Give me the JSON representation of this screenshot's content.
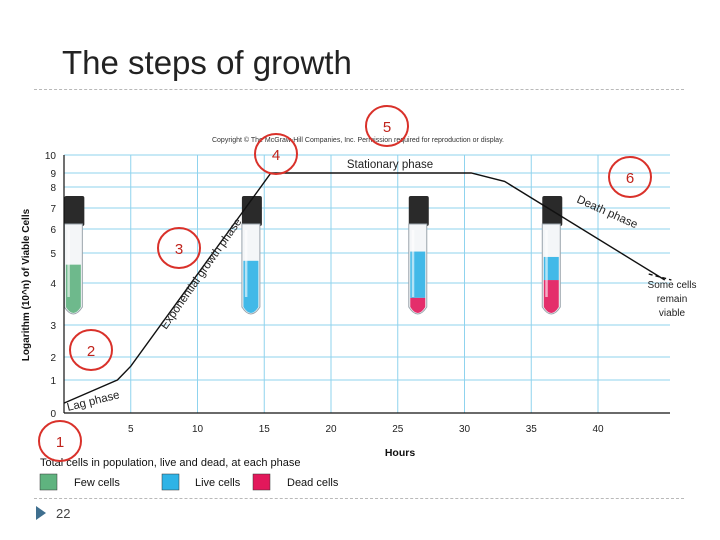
{
  "slide": {
    "title": "The steps of growth",
    "slide_number": "22"
  },
  "copyright": "Copyright © The McGraw-Hill Companies, Inc. Permission required for reproduction or display.",
  "colors": {
    "grid": "#8fd3ee",
    "curve": "#111111",
    "marker_ring": "#d9312a",
    "marker_text": "#c0241c",
    "few_cells": "#5fb37f",
    "live_cells": "#2fb3e6",
    "dead_cells": "#e2185b",
    "tube_cap": "#2a2a2a"
  },
  "annotations": {
    "lag_phase": "Lag phase",
    "exponential_phase": "Exponential growth phase",
    "stationary_phase": "Stationary phase",
    "death_phase": "Death phase",
    "remain_viable": [
      "Some cells",
      "remain",
      "viable"
    ]
  },
  "markers": [
    "1",
    "2",
    "3",
    "4",
    "5",
    "6"
  ],
  "legend": {
    "title": "Total cells in population, live and dead, at each phase",
    "items": [
      {
        "label": "Few cells",
        "color": "#5fb37f"
      },
      {
        "label": "Live cells",
        "color": "#2fb3e6"
      },
      {
        "label": "Dead cells",
        "color": "#e2185b"
      }
    ]
  },
  "tubes": [
    {
      "hours": 0.7,
      "green": 0.55,
      "blue": 0,
      "pink": 0
    },
    {
      "hours": 14,
      "green": 0,
      "blue": 0.6,
      "pink": 0
    },
    {
      "hours": 26.5,
      "green": 0,
      "blue": 0.6,
      "pink": 0.12
    },
    {
      "hours": 36.5,
      "green": 0,
      "blue": 0.3,
      "pink": 0.35
    }
  ],
  "chart_data": {
    "type": "line",
    "xlabel": "Hours",
    "ylabel": "Logarithm (10^n) of Viable Cells",
    "x_ticks": [
      5,
      10,
      15,
      20,
      25,
      30,
      35,
      40
    ],
    "y_ticks": [
      0,
      1,
      2,
      3,
      4,
      5,
      6,
      7,
      8,
      9,
      10
    ],
    "xlim": [
      0,
      45
    ],
    "ylim": [
      0,
      10
    ],
    "grid": true,
    "series": [
      {
        "x": [
          0,
          4,
          5,
          15.5,
          30.5,
          33,
          45
        ],
        "y": [
          0.3,
          1.0,
          1.6,
          9.0,
          9.0,
          8.4,
          4.1
        ],
        "style": "solid"
      },
      {
        "x": [
          43.8,
          45.5
        ],
        "y": [
          4.3,
          4.1
        ],
        "style": "dashed"
      }
    ]
  }
}
